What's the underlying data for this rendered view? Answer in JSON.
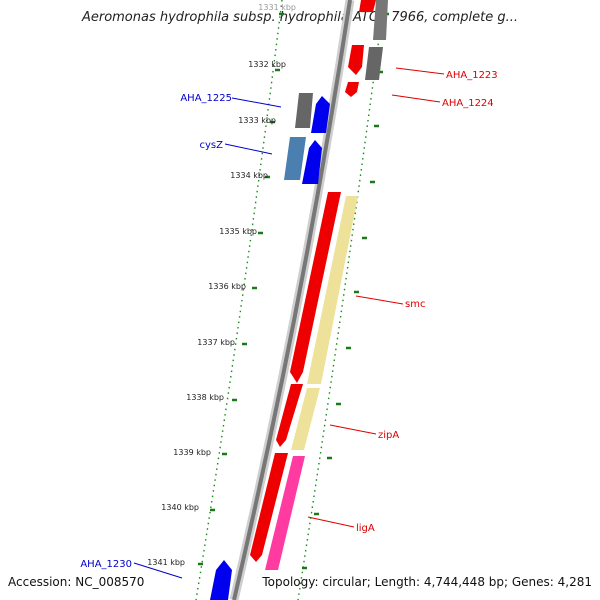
{
  "title": "Aeromonas hydrophila subsp. hydrophila ATCC 7966, complete g...",
  "footer": {
    "accession": "Accession: NC_008570",
    "summary": "Topology: circular; Length: 4,744,448 bp; Genes: 4,281"
  },
  "ticks": [
    {
      "label": "1331 kbp"
    },
    {
      "label": "1332 kbp"
    },
    {
      "label": "1333 kbp"
    },
    {
      "label": "1334 kbp"
    },
    {
      "label": "1335 kbp"
    },
    {
      "label": "1336 kbp"
    },
    {
      "label": "1337 kbp"
    },
    {
      "label": "1338 kbp"
    },
    {
      "label": "1339 kbp"
    },
    {
      "label": "1340 kbp"
    },
    {
      "label": "1341 kbp"
    }
  ],
  "genes": [
    {
      "label": "AHA_1223",
      "strand": "outer",
      "color": "#cc0000"
    },
    {
      "label": "AHA_1224",
      "strand": "outer",
      "color": "#cc0000"
    },
    {
      "label": "AHA_1225",
      "strand": "inner",
      "color": "#0000cc"
    },
    {
      "label": "cysZ",
      "strand": "inner",
      "color": "#0000cc"
    },
    {
      "label": "smc",
      "strand": "outer",
      "color": "#cc0000"
    },
    {
      "label": "zipA",
      "strand": "outer",
      "color": "#cc0000"
    },
    {
      "label": "ligA",
      "strand": "outer",
      "color": "#cc0000"
    },
    {
      "label": "AHA_1230",
      "strand": "inner",
      "color": "#0000cc"
    }
  ],
  "colors": {
    "backbone": "#808080",
    "tick": "#1a7a1a",
    "gene_forward": "#ee0000",
    "gene_reverse": "#0000ee",
    "gene_grey": "#666666",
    "cog_yellow": "#eee29a",
    "cog_pink": "#ff3aa0",
    "cog_blue": "#4a7fb0"
  }
}
